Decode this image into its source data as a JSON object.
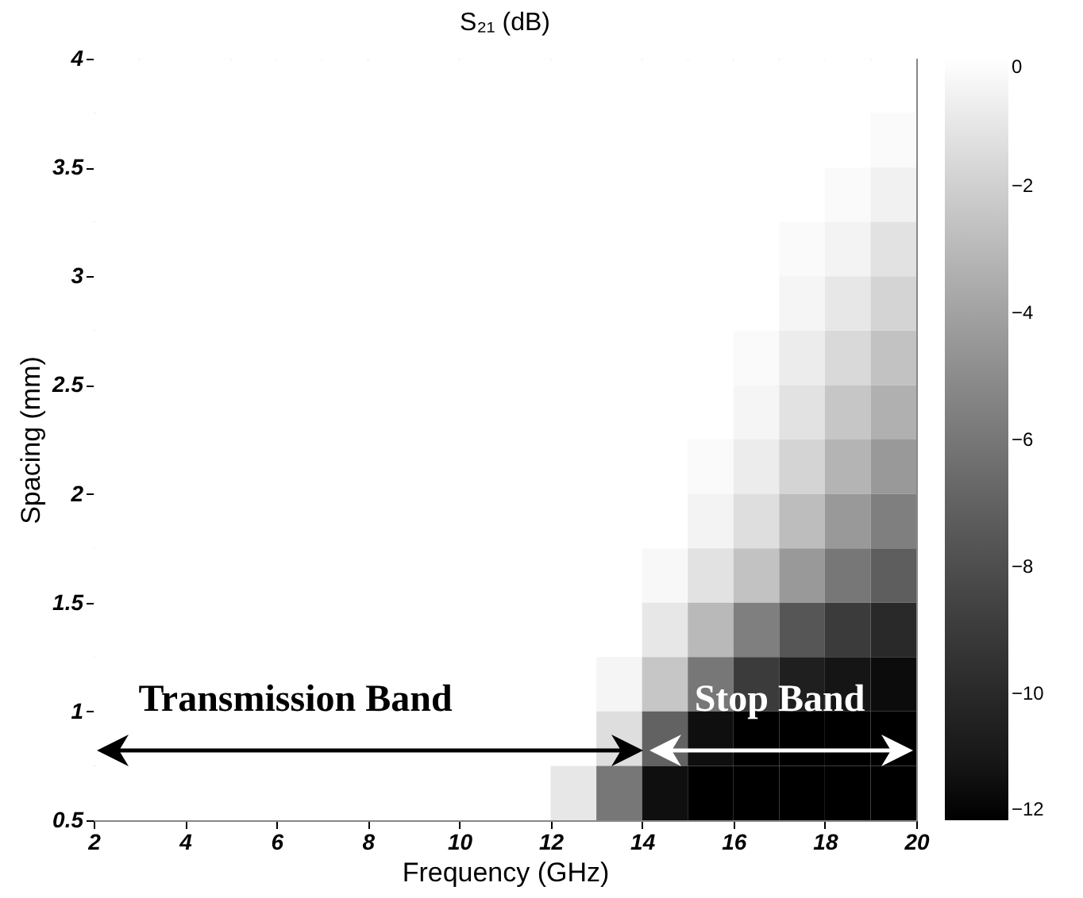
{
  "chart_data": {
    "type": "heatmap",
    "title": "S₂₁ (dB)",
    "xlabel": "Frequency (GHz)",
    "ylabel": "Spacing (mm)",
    "x": [
      2.5,
      3.5,
      4.5,
      5.5,
      6.5,
      7.5,
      8.5,
      9.5,
      10.5,
      11.5,
      12.5,
      13.5,
      14.5,
      15.5,
      16.5,
      17.5,
      18.5,
      19.5
    ],
    "y": [
      3.875,
      3.625,
      3.375,
      3.125,
      2.875,
      2.625,
      2.375,
      2.125,
      1.875,
      1.625,
      1.375,
      1.125,
      0.875,
      0.625
    ],
    "xlim": [
      2,
      20
    ],
    "xticks": [
      2,
      4,
      6,
      8,
      10,
      12,
      14,
      16,
      18,
      20
    ],
    "ylim": [
      0.5,
      4
    ],
    "yticks": [
      0.5,
      1,
      1.5,
      2,
      2.5,
      3,
      3.5,
      4
    ],
    "clim": [
      -12,
      0
    ],
    "cticks": [
      0,
      -2,
      -4,
      -6,
      -8,
      -10,
      -12
    ],
    "cells": [
      [
        0,
        0,
        0,
        0,
        0,
        0,
        0,
        0,
        0,
        0,
        0,
        0,
        0,
        0,
        0,
        0,
        0,
        0
      ],
      [
        0,
        0,
        0,
        0,
        0,
        0,
        0,
        0,
        0,
        0,
        0,
        0,
        0,
        0,
        0,
        0,
        0,
        -0.2
      ],
      [
        0,
        0,
        0,
        0,
        0,
        0,
        0,
        0,
        0,
        0,
        0,
        0,
        0,
        0,
        0,
        0,
        -0.2,
        -0.6
      ],
      [
        0,
        0,
        0,
        0,
        0,
        0,
        0,
        0,
        0,
        0,
        0,
        0,
        0,
        0,
        0,
        -0.2,
        -0.5,
        -1.2
      ],
      [
        0,
        0,
        0,
        0,
        0,
        0,
        0,
        0,
        0,
        0,
        0,
        0,
        0,
        0,
        0,
        -0.4,
        -1,
        -1.8
      ],
      [
        0,
        0,
        0,
        0,
        0,
        0,
        0,
        0,
        0,
        0,
        0,
        0,
        0,
        0,
        -0.2,
        -0.8,
        -1.6,
        -2.6
      ],
      [
        0,
        0,
        0,
        0,
        0,
        0,
        0,
        0,
        0,
        0,
        0,
        0,
        0,
        0,
        -0.4,
        -1.2,
        -2.4,
        -3.4
      ],
      [
        0,
        0,
        0,
        0,
        0,
        0,
        0,
        0,
        0,
        0,
        0,
        0,
        0,
        -0.2,
        -0.8,
        -1.8,
        -3.2,
        -4.4
      ],
      [
        0,
        0,
        0,
        0,
        0,
        0,
        0,
        0,
        0,
        0,
        0,
        0,
        0,
        -0.5,
        -1.4,
        -2.8,
        -4.4,
        -5.6
      ],
      [
        0,
        0,
        0,
        0,
        0,
        0,
        0,
        0,
        0,
        0,
        0,
        0,
        -0.3,
        -1.2,
        -2.6,
        -4.4,
        -6,
        -7.2
      ],
      [
        0,
        0,
        0,
        0,
        0,
        0,
        0,
        0,
        0,
        0,
        0,
        0,
        -1,
        -3,
        -5.6,
        -7.6,
        -9,
        -10
      ],
      [
        0,
        0,
        0,
        0,
        0,
        0,
        0,
        0,
        0,
        0,
        0,
        -0.4,
        -2.4,
        -6,
        -9,
        -10.6,
        -11.2,
        -11.6
      ],
      [
        0,
        0,
        0,
        0,
        0,
        0,
        0,
        0,
        0,
        0,
        0,
        -1.4,
        -7,
        -11.5,
        -12,
        -12,
        -12,
        -12
      ],
      [
        0,
        0,
        0,
        0,
        0,
        0,
        0,
        0,
        0,
        0,
        -1,
        -6,
        -11.5,
        -12,
        -12,
        -12,
        -12,
        -12
      ]
    ],
    "annotations": [
      "Transmission Band",
      "Stop Band"
    ]
  }
}
